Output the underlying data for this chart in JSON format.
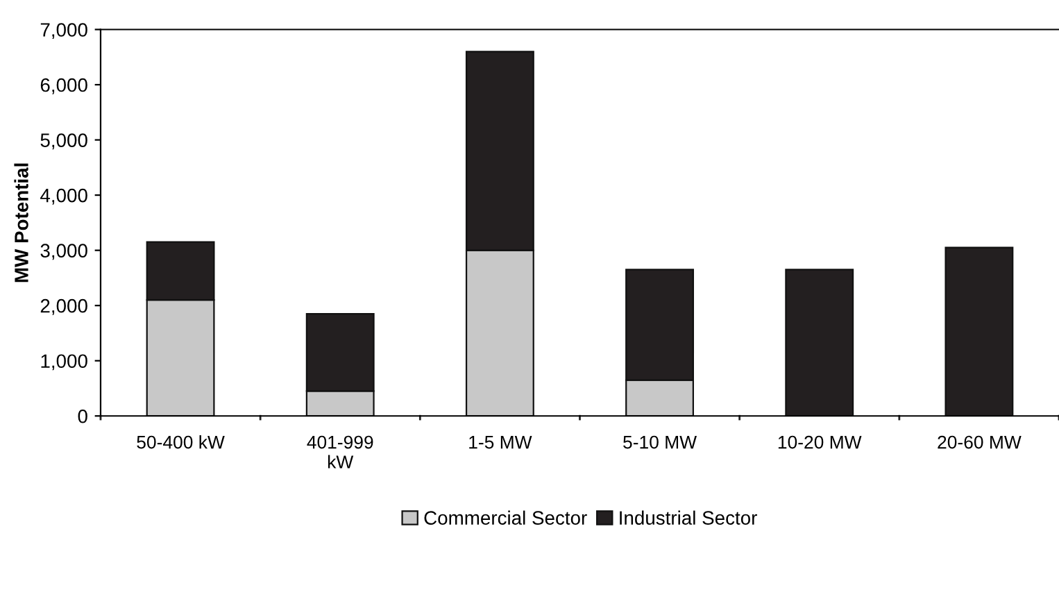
{
  "chart_data": {
    "type": "bar",
    "stacked": true,
    "ylabel": "MW Potential",
    "categories": [
      "50-400 kW",
      "401-999\nkW",
      "1-5 MW",
      "5-10 MW",
      "10-20 MW",
      "20-60 MW"
    ],
    "series": [
      {
        "name": "Commercial Sector",
        "color": "#c8c8c8",
        "values": [
          2100,
          450,
          3000,
          650,
          0,
          0
        ]
      },
      {
        "name": "Industrial Sector",
        "color": "#231f20",
        "values": [
          1050,
          1400,
          3600,
          2000,
          2650,
          3050
        ]
      }
    ],
    "ylim": [
      0,
      7000
    ],
    "yticks": [
      {
        "value": 0,
        "label": "0"
      },
      {
        "value": 1000,
        "label": "1,000"
      },
      {
        "value": 2000,
        "label": "2,000"
      },
      {
        "value": 3000,
        "label": "3,000"
      },
      {
        "value": 4000,
        "label": "4,000"
      },
      {
        "value": 5000,
        "label": "5,000"
      },
      {
        "value": 6000,
        "label": "6,000"
      },
      {
        "value": 7000,
        "label": "7,000"
      }
    ],
    "grid": false,
    "legend": "bottom"
  }
}
